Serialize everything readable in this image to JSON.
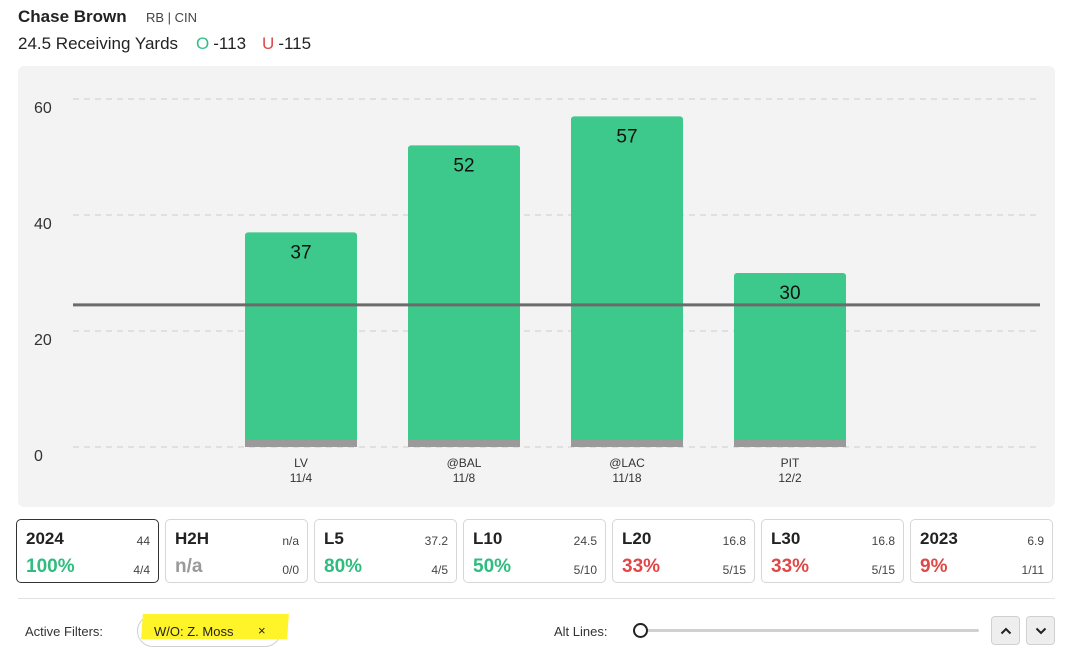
{
  "player": {
    "name": "Chase Brown",
    "meta": "RB | CIN"
  },
  "prop": {
    "line_label": "24.5 Receiving Yards",
    "over_glyph": "O",
    "over_odds": "-113",
    "under_glyph": "U",
    "under_odds": "-115"
  },
  "colors": {
    "bar": "#3cc98b",
    "bar_base": "#9a9a9a",
    "line": "#6b6b6b",
    "good": "#2ebd7e",
    "bad": "#e04848",
    "na": "#9a9a9a"
  },
  "chart_data": {
    "type": "bar",
    "categories": [
      "LV",
      "@BAL",
      "@LAC",
      "PIT"
    ],
    "dates": [
      "11/4",
      "11/8",
      "11/18",
      "12/2"
    ],
    "values": [
      37,
      52,
      57,
      30
    ],
    "yticks": [
      0,
      20,
      40,
      60
    ],
    "ylim": [
      0,
      65
    ],
    "prop_line": 24.5,
    "grid": true
  },
  "stats": [
    {
      "label": "2024",
      "avg": "44",
      "pct": "100%",
      "frac": "4/4",
      "tone": "good",
      "active": true
    },
    {
      "label": "H2H",
      "avg": "n/a",
      "pct": "n/a",
      "frac": "0/0",
      "tone": "na",
      "active": false
    },
    {
      "label": "L5",
      "avg": "37.2",
      "pct": "80%",
      "frac": "4/5",
      "tone": "good",
      "active": false
    },
    {
      "label": "L10",
      "avg": "24.5",
      "pct": "50%",
      "frac": "5/10",
      "tone": "good",
      "active": false
    },
    {
      "label": "L20",
      "avg": "16.8",
      "pct": "33%",
      "frac": "5/15",
      "tone": "bad",
      "active": false
    },
    {
      "label": "L30",
      "avg": "16.8",
      "pct": "33%",
      "frac": "5/15",
      "tone": "bad",
      "active": false
    },
    {
      "label": "2023",
      "avg": "6.9",
      "pct": "9%",
      "frac": "1/11",
      "tone": "bad",
      "active": false
    }
  ],
  "filters": {
    "label": "Active Filters:",
    "chip": "W/O: Z. Moss",
    "remove": "×"
  },
  "alt_lines": {
    "label": "Alt Lines:",
    "value": 0
  },
  "icons": {
    "up": "chevron-up-icon",
    "down": "chevron-down-icon"
  }
}
